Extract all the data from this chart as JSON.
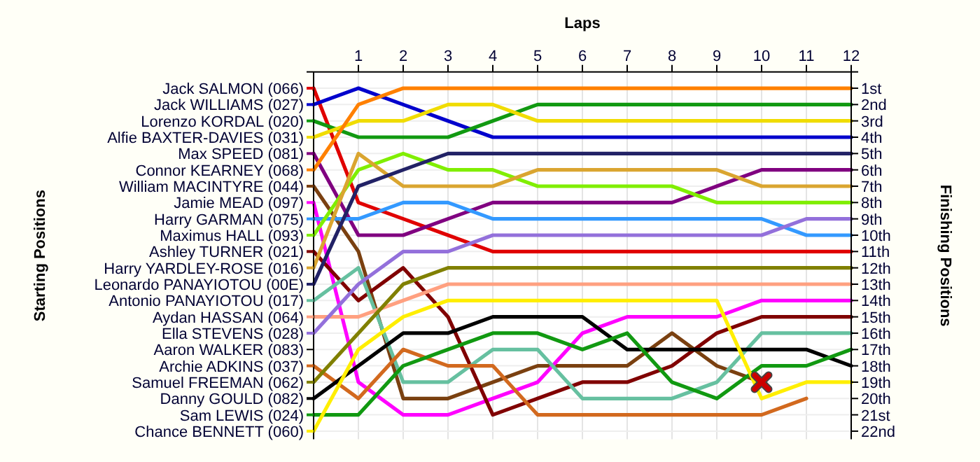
{
  "chart_data": {
    "type": "line",
    "xlabel": "Laps",
    "legend_title": "Starting Positions",
    "y2label": "Finishing Positions",
    "x": [
      0,
      1,
      2,
      3,
      4,
      5,
      6,
      7,
      8,
      9,
      10,
      11,
      12
    ],
    "xlim": [
      0,
      12
    ],
    "xticks": [
      1,
      2,
      3,
      4,
      5,
      6,
      7,
      8,
      9,
      10,
      11,
      12
    ],
    "ylim": [
      22.5,
      0
    ],
    "yticks": [
      {
        "value": 0,
        "label": null
      },
      {
        "value": 1,
        "label": "1st"
      },
      {
        "value": 2,
        "label": "2nd"
      },
      {
        "value": 3,
        "label": "3rd"
      },
      {
        "value": 4,
        "label": "4th"
      },
      {
        "value": 5,
        "label": "5th"
      },
      {
        "value": 6,
        "label": "6th"
      },
      {
        "value": 7,
        "label": "7th"
      },
      {
        "value": 8,
        "label": "8th"
      },
      {
        "value": 9,
        "label": "9th"
      },
      {
        "value": 10,
        "label": "10th"
      },
      {
        "value": 11,
        "label": "11th"
      },
      {
        "value": 12,
        "label": "12th"
      },
      {
        "value": 13,
        "label": "13th"
      },
      {
        "value": 14,
        "label": "14th"
      },
      {
        "value": 15,
        "label": "15th"
      },
      {
        "value": 16,
        "label": "16th"
      },
      {
        "value": 17,
        "label": "17th"
      },
      {
        "value": 18,
        "label": "18th"
      },
      {
        "value": 19,
        "label": "19th"
      },
      {
        "value": 20,
        "label": "20th"
      },
      {
        "value": 21,
        "label": "21st"
      },
      {
        "value": 22,
        "label": "22nd"
      }
    ],
    "grid": true,
    "legend": "left",
    "line_style": "solid",
    "marker": "none",
    "series": [
      {
        "name": "Jack SALMON (066)",
        "color": "#e00000",
        "values": [
          1,
          8,
          9,
          10,
          11,
          11,
          11,
          11,
          11,
          11,
          11,
          11,
          11
        ]
      },
      {
        "name": "Jack WILLIAMS (027)",
        "color": "#0000cc",
        "values": [
          2,
          1,
          2,
          3,
          4,
          4,
          4,
          4,
          4,
          4,
          4,
          4,
          4
        ]
      },
      {
        "name": "Lorenzo KORDAL (020)",
        "color": "#119911",
        "values": [
          3,
          4,
          4,
          4,
          3,
          2,
          2,
          2,
          2,
          2,
          2,
          2,
          2
        ]
      },
      {
        "name": "Alfie BAXTER-DAVIES (031)",
        "color": "#f0dc00",
        "values": [
          4,
          3,
          3,
          2,
          2,
          3,
          3,
          3,
          3,
          3,
          3,
          3,
          3
        ]
      },
      {
        "name": "Max SPEED (081)",
        "color": "#800080",
        "values": [
          5,
          10,
          10,
          9,
          8,
          8,
          8,
          8,
          8,
          7,
          6,
          6,
          6
        ]
      },
      {
        "name": "Connor KEARNEY (068)",
        "color": "#ff8000",
        "values": [
          6,
          2,
          1,
          1,
          1,
          1,
          1,
          1,
          1,
          1,
          1,
          1,
          1
        ]
      },
      {
        "name": "William MACINTYRE (044)",
        "color": "#7a4010",
        "values": [
          7,
          11,
          20,
          20,
          19,
          18,
          18,
          18,
          16,
          18,
          19,
          null,
          null
        ]
      },
      {
        "name": "Jamie MEAD (097)",
        "color": "#ff00ff",
        "values": [
          8,
          19,
          21,
          21,
          20,
          19,
          16,
          15,
          15,
          15,
          14,
          14,
          14
        ]
      },
      {
        "name": "Harry GARMAN (075)",
        "color": "#3399ff",
        "values": [
          9,
          9,
          8,
          8,
          9,
          9,
          9,
          9,
          9,
          9,
          9,
          10,
          10
        ]
      },
      {
        "name": "Maximus HALL (093)",
        "color": "#80ee00",
        "values": [
          10,
          6,
          5,
          6,
          6,
          7,
          7,
          7,
          7,
          8,
          8,
          8,
          8
        ]
      },
      {
        "name": "Ashley TURNER (021)",
        "color": "#800000",
        "values": [
          11,
          14,
          12,
          15,
          21,
          20,
          19,
          19,
          18,
          16,
          15,
          15,
          15
        ]
      },
      {
        "name": "Harry YARDLEY-ROSE (016)",
        "color": "#daa530",
        "values": [
          12,
          5,
          7,
          7,
          7,
          6,
          6,
          6,
          6,
          6,
          7,
          7,
          7
        ]
      },
      {
        "name": "Leonardo PANAYIOTOU (00E)",
        "color": "#222266",
        "values": [
          13,
          7,
          6,
          5,
          5,
          5,
          5,
          5,
          5,
          5,
          5,
          5,
          5
        ]
      },
      {
        "name": "Antonio PANAYIOTOU (017)",
        "color": "#66c0a0",
        "values": [
          14,
          12,
          19,
          19,
          17,
          17,
          20,
          20,
          20,
          19,
          16,
          16,
          16
        ]
      },
      {
        "name": "Aydan HASSAN (064)",
        "color": "#ffa080",
        "values": [
          15,
          15,
          14,
          13,
          13,
          13,
          13,
          13,
          13,
          13,
          13,
          13,
          13
        ]
      },
      {
        "name": "Ella STEVENS (028)",
        "color": "#9370db",
        "values": [
          16,
          13,
          11,
          11,
          10,
          10,
          10,
          10,
          10,
          10,
          10,
          9,
          9
        ]
      },
      {
        "name": "Aaron WALKER (083)",
        "values": [
          null,
          null,
          null,
          null,
          null,
          null,
          null,
          null,
          null,
          null,
          null,
          null,
          null
        ]
      },
      {
        "name": "Archie ADKINS (037)",
        "color": "#d2691e",
        "values": [
          18,
          20,
          17,
          18,
          18,
          21,
          21,
          21,
          21,
          21,
          21,
          20,
          null
        ]
      },
      {
        "name": "Samuel FREEMAN (062)",
        "color": "#808000",
        "values": [
          19,
          16,
          13,
          12,
          12,
          12,
          12,
          12,
          12,
          12,
          12,
          12,
          12
        ]
      },
      {
        "name": "Danny GOULD (082)",
        "color": "#000000",
        "values": [
          20,
          18,
          16,
          16,
          15,
          15,
          15,
          17,
          17,
          17,
          17,
          17,
          18
        ]
      },
      {
        "name": "Sam LEWIS (024)",
        "color": "#119911",
        "values": [
          21,
          21,
          18,
          17,
          16,
          16,
          17,
          16,
          19,
          20,
          18,
          18,
          17
        ]
      },
      {
        "name": "Chance BENNETT (060)",
        "color": "#ffee00",
        "values": [
          22,
          17,
          15,
          14,
          14,
          14,
          14,
          14,
          14,
          14,
          20,
          19,
          19
        ]
      },
      {
        "type": "scatter",
        "marker": "cross",
        "color": "#cc0000",
        "x": [
          10
        ],
        "values": [
          19
        ]
      }
    ]
  }
}
